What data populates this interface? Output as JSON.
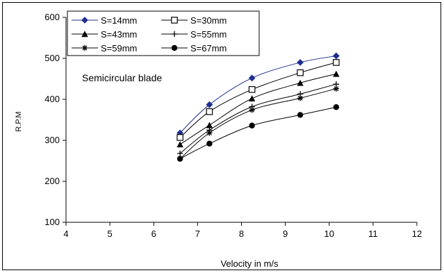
{
  "chart_data": {
    "type": "line",
    "title": "",
    "annotation": "Semicircular blade",
    "xlabel": "Velocity in m/s",
    "ylabel": "R.P.M",
    "xlim": [
      4,
      12
    ],
    "ylim": [
      100,
      600
    ],
    "xticks": [
      4,
      5,
      6,
      7,
      8,
      9,
      10,
      11,
      12
    ],
    "yticks": [
      100,
      200,
      300,
      400,
      500,
      600
    ],
    "grid": false,
    "legend_position": "top-left",
    "x": [
      6.6,
      7.27,
      8.24,
      9.34,
      10.16
    ],
    "series": [
      {
        "name": "S=14mm",
        "marker": "diamond-filled",
        "color": "#1f2f8f",
        "values": [
          318,
          387,
          452,
          490,
          506
        ]
      },
      {
        "name": "S=30mm",
        "marker": "square-open",
        "color": "#000000",
        "values": [
          307,
          370,
          424,
          465,
          490
        ]
      },
      {
        "name": "S=43mm",
        "marker": "triangle-filled",
        "color": "#000000",
        "values": [
          290,
          337,
          402,
          440,
          462
        ]
      },
      {
        "name": "S=55mm",
        "marker": "plus",
        "color": "#000000",
        "values": [
          268,
          325,
          382,
          413,
          437
        ]
      },
      {
        "name": "S=59mm",
        "marker": "star",
        "color": "#000000",
        "values": [
          255,
          318,
          374,
          403,
          426
        ]
      },
      {
        "name": "S=67mm",
        "marker": "circle-filled",
        "color": "#000000",
        "values": [
          255,
          292,
          336,
          362,
          381
        ]
      }
    ]
  }
}
